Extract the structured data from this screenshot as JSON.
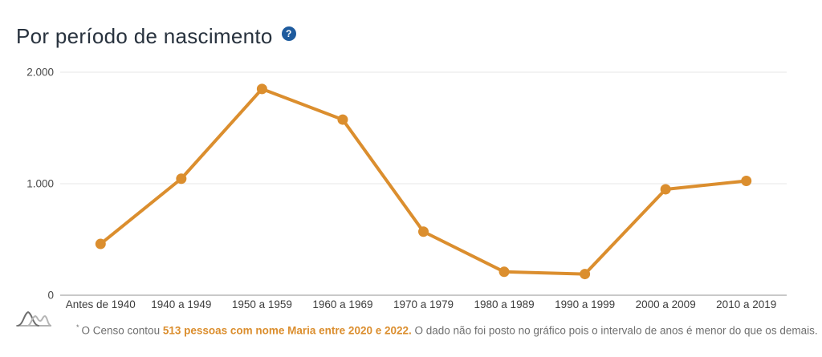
{
  "header": {
    "title": "Por período de nascimento",
    "help_glyph": "?"
  },
  "chart_data": {
    "type": "line",
    "title": "Por período de nascimento",
    "categories": [
      "Antes de 1940",
      "1940 a 1949",
      "1950 a 1959",
      "1960 a 1969",
      "1970 a 1979",
      "1980 a 1989",
      "1990 a 1999",
      "2000 a 2009",
      "2010 a 2019"
    ],
    "values": [
      460,
      1045,
      1850,
      1575,
      570,
      210,
      190,
      950,
      1025
    ],
    "ylim": [
      0,
      2000
    ],
    "yticks": [
      {
        "value": 2000,
        "label": "2.000"
      },
      {
        "value": 1000,
        "label": "1.000"
      },
      {
        "value": 0,
        "label": "0"
      }
    ],
    "xlabel": "",
    "ylabel": "",
    "grid": true,
    "legend": false,
    "line_color": "#DB8E2E",
    "marker": "circle"
  },
  "footnote": {
    "marker": "*",
    "text_before": "O Censo contou ",
    "highlight": "513 pessoas com nome Maria entre 2020 e 2022.",
    "text_after": " O dado não foi posto no gráfico pois o intervalo de anos é menor do que os demais."
  },
  "icons": {
    "help": "help-icon",
    "corner": "distribution-curves-icon"
  },
  "colors": {
    "accent": "#DB8E2E",
    "title": "#28323E",
    "help_badge": "#1E5B9E",
    "footnote": "#6F6F6F",
    "gridline": "#E7E7E7",
    "axis_line": "#C9C9C9"
  }
}
